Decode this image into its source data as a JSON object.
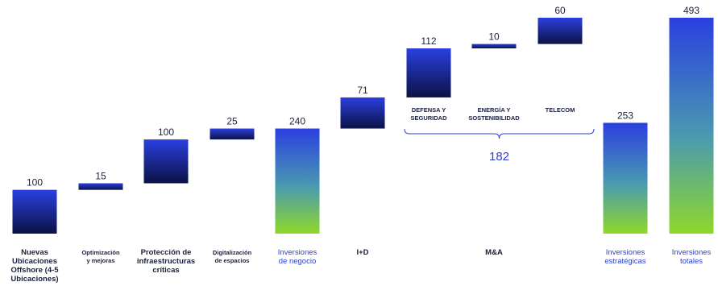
{
  "chart_data": {
    "type": "bar",
    "subtype": "waterfall",
    "ylim": [
      0,
      493
    ],
    "grid": false,
    "colors": {
      "step_top": "#2b3fe0",
      "step_bottom": "#0b1244",
      "subtotal_top": "#2b3fe0",
      "subtotal_bottom": "#8fd82a",
      "accent_text": "#2a3fd6",
      "text": "#1a1f3c"
    },
    "bars": [
      {
        "label": [
          "Nuevas",
          "Ubicaciones",
          "Offshore (4-5",
          "Ubicaciones)"
        ],
        "value": 100,
        "value_label": "100",
        "kind": "step"
      },
      {
        "label": [
          "Optimización",
          "y mejoras"
        ],
        "value": 15,
        "value_label": "15",
        "kind": "step",
        "small": true
      },
      {
        "label": [
          "Protección de",
          "infraestructuras",
          "críticas"
        ],
        "value": 100,
        "value_label": "100",
        "kind": "step"
      },
      {
        "label": [
          "Digitalización",
          "de espacios"
        ],
        "value": 25,
        "value_label": "25",
        "kind": "step",
        "small": true
      },
      {
        "label": [
          "Inversiones",
          "de negocio"
        ],
        "value": 240,
        "value_label": "240",
        "kind": "subtotal"
      },
      {
        "label": [
          "I+D"
        ],
        "value": 71,
        "value_label": "71",
        "kind": "step"
      },
      {
        "label": [],
        "value": 112,
        "value_label": "112",
        "kind": "step",
        "sublabel": [
          "DEFENSA Y",
          "SEGURIDAD"
        ]
      },
      {
        "label": [
          "M&A"
        ],
        "value": 10,
        "value_label": "10",
        "kind": "step",
        "sublabel": [
          "ENERGÍA Y",
          "SOSTENIBILIDAD"
        ]
      },
      {
        "label": [],
        "value": 60,
        "value_label": "60",
        "kind": "step",
        "sublabel": [
          "TELECOM"
        ]
      },
      {
        "label": [
          "Inversiones",
          "estratégicas"
        ],
        "value": 253,
        "value_label": "253",
        "kind": "subtotal"
      },
      {
        "label": [
          "Inversiones",
          "totales"
        ],
        "value": 493,
        "value_label": "493",
        "kind": "total"
      }
    ],
    "group": {
      "from": 6,
      "to": 8,
      "total": 182,
      "total_label": "182"
    }
  }
}
